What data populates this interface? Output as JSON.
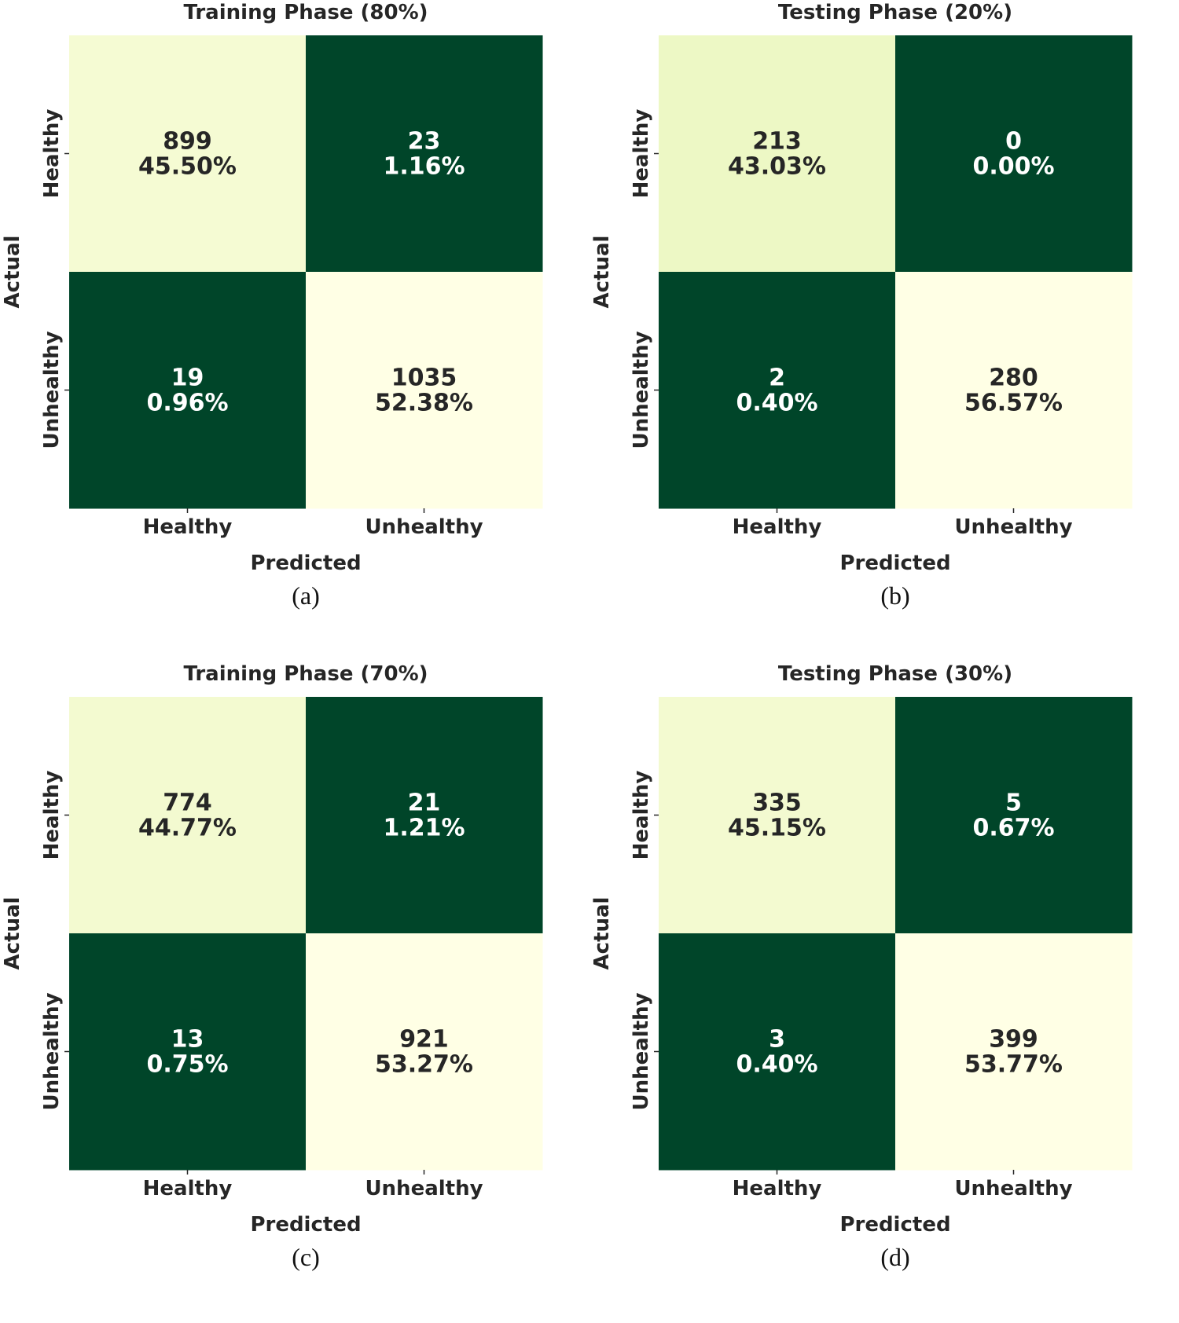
{
  "chart_data": [
    {
      "type": "heatmap",
      "title": "Training Phase (80%)",
      "xlabel": "Predicted",
      "ylabel": "Actual",
      "x_categories": [
        "Healthy",
        "Unhealthy"
      ],
      "y_categories": [
        "Healthy",
        "Unhealthy"
      ],
      "cells": [
        {
          "row": 0,
          "col": 0,
          "count": "899",
          "percent": "45.50%",
          "value": 899
        },
        {
          "row": 0,
          "col": 1,
          "count": "23",
          "percent": "1.16%",
          "value": 23
        },
        {
          "row": 1,
          "col": 0,
          "count": "19",
          "percent": "0.96%",
          "value": 19
        },
        {
          "row": 1,
          "col": 1,
          "count": "1035",
          "percent": "52.38%",
          "value": 1035
        }
      ],
      "caption": "(a)"
    },
    {
      "type": "heatmap",
      "title": "Testing Phase (20%)",
      "xlabel": "Predicted",
      "ylabel": "Actual",
      "x_categories": [
        "Healthy",
        "Unhealthy"
      ],
      "y_categories": [
        "Healthy",
        "Unhealthy"
      ],
      "cells": [
        {
          "row": 0,
          "col": 0,
          "count": "213",
          "percent": "43.03%",
          "value": 213
        },
        {
          "row": 0,
          "col": 1,
          "count": "0",
          "percent": "0.00%",
          "value": 0
        },
        {
          "row": 1,
          "col": 0,
          "count": "2",
          "percent": "0.40%",
          "value": 2
        },
        {
          "row": 1,
          "col": 1,
          "count": "280",
          "percent": "56.57%",
          "value": 280
        }
      ],
      "caption": "(b)"
    },
    {
      "type": "heatmap",
      "title": "Training Phase (70%)",
      "xlabel": "Predicted",
      "ylabel": "Actual",
      "x_categories": [
        "Healthy",
        "Unhealthy"
      ],
      "y_categories": [
        "Healthy",
        "Unhealthy"
      ],
      "cells": [
        {
          "row": 0,
          "col": 0,
          "count": "774",
          "percent": "44.77%",
          "value": 774
        },
        {
          "row": 0,
          "col": 1,
          "count": "21",
          "percent": "1.21%",
          "value": 21
        },
        {
          "row": 1,
          "col": 0,
          "count": "13",
          "percent": "0.75%",
          "value": 13
        },
        {
          "row": 1,
          "col": 1,
          "count": "921",
          "percent": "53.27%",
          "value": 921
        }
      ],
      "caption": "(c)"
    },
    {
      "type": "heatmap",
      "title": "Testing Phase (30%)",
      "xlabel": "Predicted",
      "ylabel": "Actual",
      "x_categories": [
        "Healthy",
        "Unhealthy"
      ],
      "y_categories": [
        "Healthy",
        "Unhealthy"
      ],
      "cells": [
        {
          "row": 0,
          "col": 0,
          "count": "335",
          "percent": "45.15%",
          "value": 335
        },
        {
          "row": 0,
          "col": 1,
          "count": "5",
          "percent": "0.67%",
          "value": 5
        },
        {
          "row": 1,
          "col": 0,
          "count": "3",
          "percent": "0.40%",
          "value": 3
        },
        {
          "row": 1,
          "col": 1,
          "count": "399",
          "percent": "53.77%",
          "value": 399
        }
      ],
      "caption": "(d)"
    }
  ],
  "colors": {
    "colormap_low": "#004529",
    "colormap_mid": "#d9f0a3",
    "colormap_high": "#ffffe5",
    "text_on_light": "#262626",
    "text_on_dark": "#ffffff"
  }
}
